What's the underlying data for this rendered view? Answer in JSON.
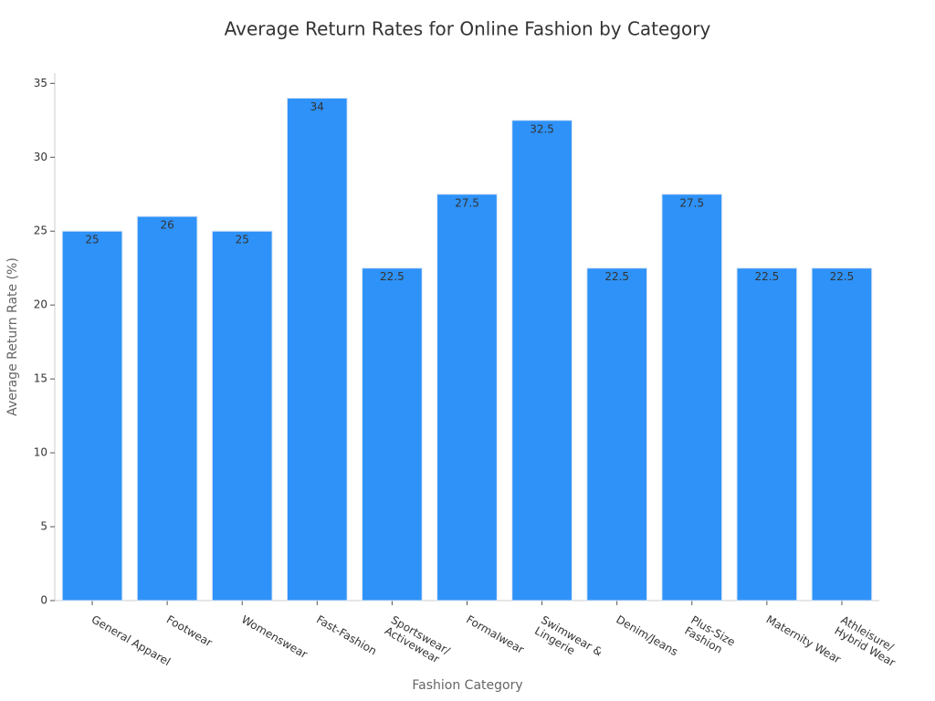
{
  "chart_data": {
    "type": "bar",
    "title": "Average Return Rates for Online Fashion by Category",
    "x_label": "Fashion Category",
    "y_label": "Average Return Rate (%)",
    "categories": [
      "General Apparel",
      "Footwear",
      "Womenswear",
      "Fast-Fashion",
      "Sportswear/\nActivewear",
      "Formalwear",
      "Swimwear &\nLingerie",
      "Denim/Jeans",
      "Plus-Size\nFashion",
      "Maternity Wear",
      "Athleisure/\nHybrid Wear"
    ],
    "values": [
      25,
      26,
      25,
      34,
      22.5,
      27.5,
      32.5,
      22.5,
      27.5,
      22.5,
      22.5
    ],
    "color": "#2e92f8",
    "ylim": [
      0,
      35.7
    ],
    "yticks": [
      0,
      5,
      10,
      15,
      20,
      25,
      30,
      35
    ],
    "grid": false
  }
}
